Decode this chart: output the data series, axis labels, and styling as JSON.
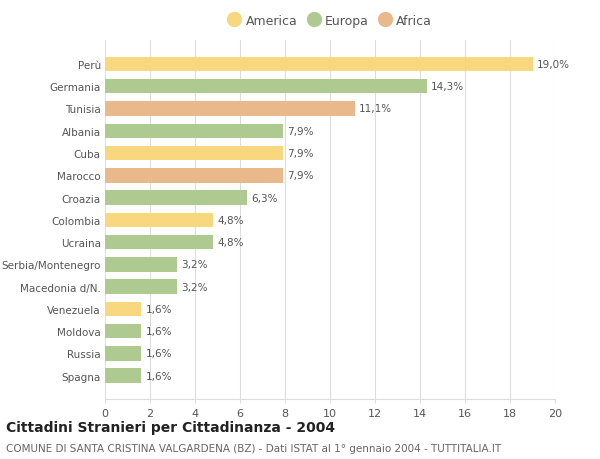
{
  "categories": [
    "Spagna",
    "Russia",
    "Moldova",
    "Venezuela",
    "Macedonia d/N.",
    "Serbia/Montenegro",
    "Ucraina",
    "Colombia",
    "Croazia",
    "Marocco",
    "Cuba",
    "Albania",
    "Tunisia",
    "Germania",
    "Perù"
  ],
  "values": [
    1.6,
    1.6,
    1.6,
    1.6,
    3.2,
    3.2,
    4.8,
    4.8,
    6.3,
    7.9,
    7.9,
    7.9,
    11.1,
    14.3,
    19.0
  ],
  "labels": [
    "1,6%",
    "1,6%",
    "1,6%",
    "1,6%",
    "3,2%",
    "3,2%",
    "4,8%",
    "4,8%",
    "6,3%",
    "7,9%",
    "7,9%",
    "7,9%",
    "11,1%",
    "14,3%",
    "19,0%"
  ],
  "continents": [
    "Europa",
    "Europa",
    "Europa",
    "America",
    "Europa",
    "Europa",
    "Europa",
    "America",
    "Europa",
    "Africa",
    "America",
    "Europa",
    "Africa",
    "Europa",
    "America"
  ],
  "colors": {
    "America": "#F9D77E",
    "Europa": "#AFCA91",
    "Africa": "#EAB98B"
  },
  "legend_order": [
    "America",
    "Europa",
    "Africa"
  ],
  "xlim": [
    0,
    20
  ],
  "xticks": [
    0,
    2,
    4,
    6,
    8,
    10,
    12,
    14,
    16,
    18,
    20
  ],
  "title": "Cittadini Stranieri per Cittadinanza - 2004",
  "subtitle": "COMUNE DI SANTA CRISTINA VALGARDENA (BZ) - Dati ISTAT al 1° gennaio 2004 - TUTTITALIA.IT",
  "bg_color": "#FFFFFF",
  "grid_color": "#DDDDDD",
  "bar_height": 0.65,
  "title_fontsize": 10,
  "subtitle_fontsize": 7.5,
  "label_fontsize": 7.5,
  "ytick_fontsize": 7.5,
  "xtick_fontsize": 8,
  "legend_fontsize": 9
}
